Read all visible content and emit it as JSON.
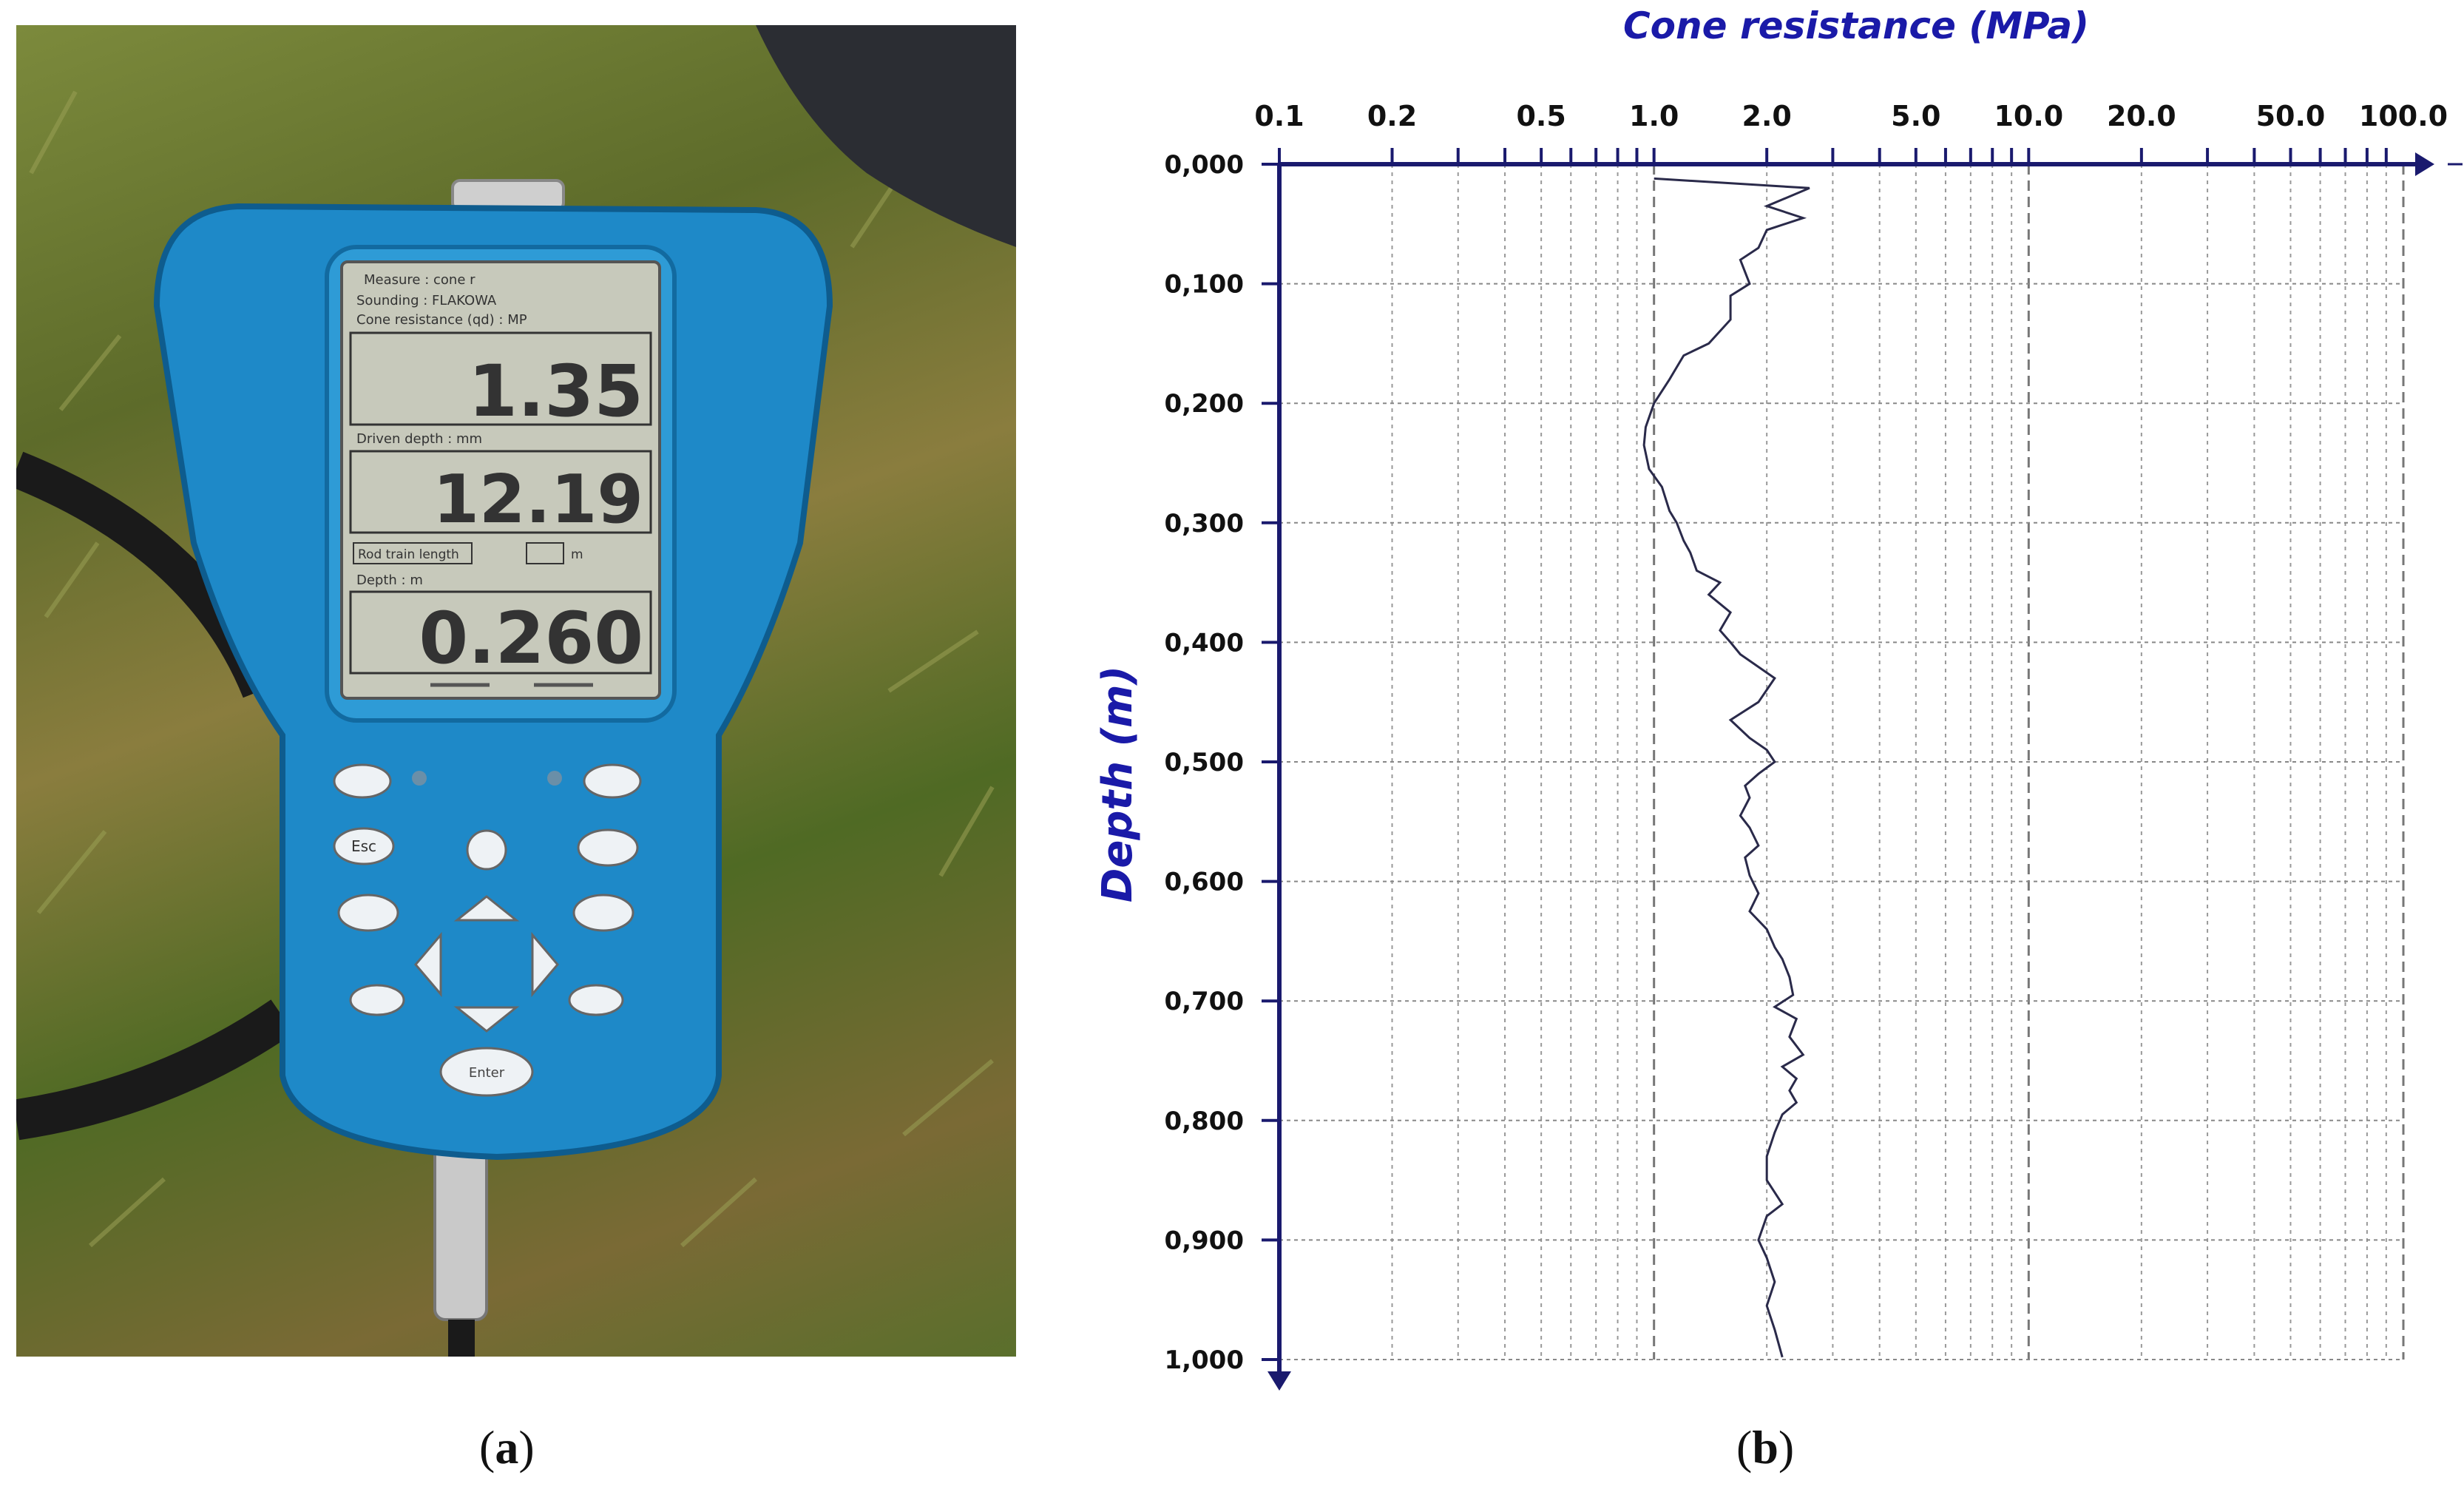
{
  "panel_a": {
    "caption_letter": "a",
    "device": {
      "screen_lines": {
        "measure": "Measure : cone r",
        "sounding": "Sounding : FLAKOWA",
        "cone_res_label": "Cone resistance (qd) : MP",
        "driven_label": "Driven depth : mm",
        "rod_label": "Rod train length",
        "rod_unit": "m",
        "depth_label": "Depth : m"
      },
      "readings": {
        "cone_resistance": "1.35",
        "driven_depth": "12.19",
        "depth": "0.260"
      },
      "keys": {
        "esc": "Esc",
        "enter": "Enter"
      }
    }
  },
  "panel_b": {
    "caption_letter": "b",
    "chart_data": {
      "type": "line",
      "title": "Cone resistance (MPa)",
      "ylabel": "Depth (m)",
      "xscale": "log",
      "xlim": [
        0.1,
        100
      ],
      "ylim": [
        0,
        1
      ],
      "y_inverted": true,
      "grid": true,
      "x_ticks": [
        {
          "v": 0.1,
          "label": "0.1"
        },
        {
          "v": 0.2,
          "label": "0.2"
        },
        {
          "v": 0.5,
          "label": "0.5"
        },
        {
          "v": 1,
          "label": "1.0"
        },
        {
          "v": 2,
          "label": "2.0"
        },
        {
          "v": 5,
          "label": "5.0"
        },
        {
          "v": 10,
          "label": "10.0"
        },
        {
          "v": 20,
          "label": "20.0"
        },
        {
          "v": 50,
          "label": "50.0"
        },
        {
          "v": 100,
          "label": "100.0"
        }
      ],
      "y_ticks": [
        {
          "v": 0,
          "label": "0,000"
        },
        {
          "v": 0.1,
          "label": "0,100"
        },
        {
          "v": 0.2,
          "label": "0,200"
        },
        {
          "v": 0.3,
          "label": "0,300"
        },
        {
          "v": 0.4,
          "label": "0,400"
        },
        {
          "v": 0.5,
          "label": "0,500"
        },
        {
          "v": 0.6,
          "label": "0,600"
        },
        {
          "v": 0.7,
          "label": "0,700"
        },
        {
          "v": 0.8,
          "label": "0,800"
        },
        {
          "v": 0.9,
          "label": "0,900"
        },
        {
          "v": 1,
          "label": "1,000"
        }
      ],
      "series": [
        {
          "x": [
            1.0,
            2.6,
            2.0,
            2.5,
            2.0,
            1.9,
            1.7,
            1.8,
            1.6,
            1.6,
            1.4,
            1.2,
            1.1,
            1.0,
            0.95,
            0.94,
            0.97,
            1.05,
            1.1,
            1.15,
            1.2,
            1.25,
            1.3,
            1.5,
            1.4,
            1.6,
            1.5,
            1.6,
            1.7,
            2.1,
            1.9,
            1.6,
            1.8,
            2.0,
            2.1,
            1.9,
            1.75,
            1.8,
            1.7,
            1.8,
            1.9,
            1.75,
            1.8,
            1.9,
            1.8,
            2.0,
            2.1,
            2.2,
            2.3,
            2.35,
            2.1,
            2.4,
            2.3,
            2.5,
            2.2,
            2.4,
            2.3,
            2.4,
            2.2,
            2.1,
            2.0,
            2.0,
            2.2,
            2.0,
            1.9,
            2.0,
            2.1,
            2.0,
            2.1,
            2.2
          ],
          "y": [
            0.012,
            0.02,
            0.035,
            0.045,
            0.055,
            0.07,
            0.08,
            0.1,
            0.11,
            0.13,
            0.15,
            0.16,
            0.18,
            0.2,
            0.22,
            0.235,
            0.255,
            0.27,
            0.29,
            0.3,
            0.315,
            0.325,
            0.34,
            0.35,
            0.36,
            0.375,
            0.39,
            0.4,
            0.41,
            0.43,
            0.45,
            0.465,
            0.48,
            0.49,
            0.5,
            0.51,
            0.52,
            0.53,
            0.545,
            0.555,
            0.57,
            0.58,
            0.595,
            0.61,
            0.625,
            0.64,
            0.655,
            0.665,
            0.68,
            0.695,
            0.705,
            0.715,
            0.73,
            0.745,
            0.755,
            0.765,
            0.775,
            0.785,
            0.795,
            0.81,
            0.83,
            0.85,
            0.87,
            0.88,
            0.9,
            0.915,
            0.935,
            0.955,
            0.975,
            0.998
          ]
        }
      ]
    }
  }
}
